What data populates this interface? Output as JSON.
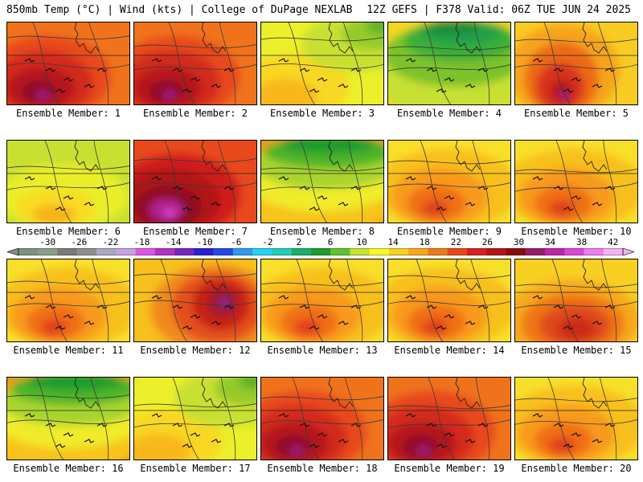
{
  "header": {
    "left_title": "850mb Temp (°C) | Wind (kts) | College of DuPage NEXLAB",
    "right_title": "12Z GEFS | F378 Valid: 06Z TUE JUN 24 2025"
  },
  "colorbar": {
    "tick_labels": [
      "-30",
      "-26",
      "-22",
      "-18",
      "-14",
      "-10",
      "-6",
      "-2",
      "2",
      "6",
      "10",
      "14",
      "18",
      "22",
      "26",
      "30",
      "34",
      "38",
      "42"
    ],
    "colors": [
      "#7d927d",
      "#8a9c8a",
      "#7a7a7a",
      "#8f8f8f",
      "#a9a9c6",
      "#c7a3e2",
      "#e054e6",
      "#b432c4",
      "#7a23c6",
      "#2b1fd0",
      "#2747e8",
      "#2e9af0",
      "#27d1f2",
      "#25cdb7",
      "#19b06c",
      "#1e9c2f",
      "#62c22a",
      "#c8e030",
      "#f8f82a",
      "#f8cf20",
      "#f8a81a",
      "#f07a18",
      "#e8481a",
      "#d8201c",
      "#b81414",
      "#8c0a0a",
      "#9a1a6a",
      "#c222a8",
      "#e043d6",
      "#f07cf0",
      "#f4b2f4"
    ]
  },
  "members": [
    {
      "label": "Ensemble Member: 1",
      "style": "hot-west"
    },
    {
      "label": "Ensemble Member: 2",
      "style": "hot-west"
    },
    {
      "label": "Ensemble Member: 3",
      "style": "cool-yellow"
    },
    {
      "label": "Ensemble Member: 4",
      "style": "cool-green"
    },
    {
      "label": "Ensemble Member: 5",
      "style": "hot-plume"
    },
    {
      "label": "Ensemble Member: 6",
      "style": "warm-yellow"
    },
    {
      "label": "Ensemble Member: 7",
      "style": "hot-west-extreme"
    },
    {
      "label": "Ensemble Member: 8",
      "style": "cool-green-north"
    },
    {
      "label": "Ensemble Member: 9",
      "style": "warm-orange"
    },
    {
      "label": "Ensemble Member: 10",
      "style": "warm-orange"
    },
    {
      "label": "Ensemble Member: 11",
      "style": "warm-orange"
    },
    {
      "label": "Ensemble Member: 12",
      "style": "hot-east"
    },
    {
      "label": "Ensemble Member: 13",
      "style": "warm-orange"
    },
    {
      "label": "Ensemble Member: 14",
      "style": "warm-orange"
    },
    {
      "label": "Ensemble Member: 15",
      "style": "hot-south"
    },
    {
      "label": "Ensemble Member: 16",
      "style": "cool-green-north"
    },
    {
      "label": "Ensemble Member: 17",
      "style": "cool-yellow"
    },
    {
      "label": "Ensemble Member: 18",
      "style": "hot-west"
    },
    {
      "label": "Ensemble Member: 19",
      "style": "hot-west"
    },
    {
      "label": "Ensemble Member: 20",
      "style": "warm-orange"
    }
  ]
}
